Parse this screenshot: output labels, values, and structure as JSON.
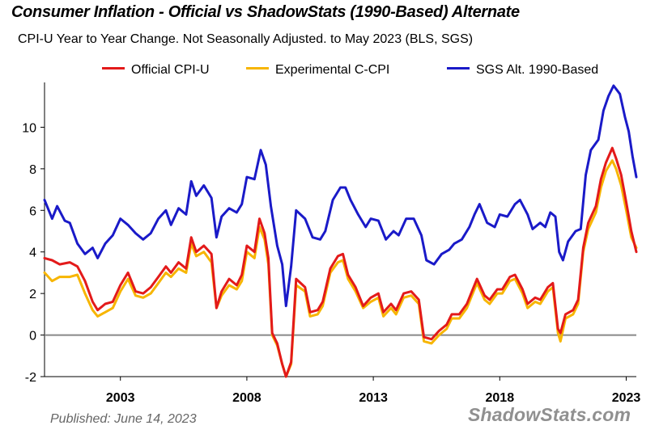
{
  "chart_data": {
    "type": "line",
    "title": "Consumer Inflation - Official vs ShadowStats (1990-Based) Alternate",
    "subtitle": "CPI-U Year to Year Change. Not Seasonally Adjusted. to May 2023  (BLS, SGS)",
    "xlabel": "",
    "ylabel": "",
    "xlim": [
      2000.0,
      2023.4
    ],
    "ylim": [
      -2,
      12
    ],
    "x_ticks": [
      "2003",
      "2008",
      "2013",
      "2018",
      "2023"
    ],
    "y_ticks": [
      "-2",
      "0",
      "2",
      "4",
      "6",
      "8",
      "10"
    ],
    "legend_position": "top",
    "grid": false,
    "published": "Published: June 14, 2023",
    "source": "ShadowStats.com",
    "series": [
      {
        "name": "Official CPI-U",
        "color": "#e31a1a",
        "points": [
          [
            2000.0,
            3.7
          ],
          [
            2000.3,
            3.6
          ],
          [
            2000.6,
            3.4
          ],
          [
            2001.0,
            3.5
          ],
          [
            2001.3,
            3.3
          ],
          [
            2001.6,
            2.6
          ],
          [
            2001.9,
            1.6
          ],
          [
            2002.1,
            1.2
          ],
          [
            2002.4,
            1.5
          ],
          [
            2002.7,
            1.6
          ],
          [
            2003.0,
            2.4
          ],
          [
            2003.3,
            3.0
          ],
          [
            2003.6,
            2.1
          ],
          [
            2003.9,
            2.0
          ],
          [
            2004.2,
            2.3
          ],
          [
            2004.5,
            2.8
          ],
          [
            2004.8,
            3.3
          ],
          [
            2005.0,
            3.0
          ],
          [
            2005.3,
            3.5
          ],
          [
            2005.6,
            3.2
          ],
          [
            2005.8,
            4.7
          ],
          [
            2006.0,
            4.0
          ],
          [
            2006.3,
            4.3
          ],
          [
            2006.6,
            3.9
          ],
          [
            2006.8,
            1.3
          ],
          [
            2007.0,
            2.1
          ],
          [
            2007.3,
            2.7
          ],
          [
            2007.6,
            2.4
          ],
          [
            2007.8,
            2.9
          ],
          [
            2008.0,
            4.3
          ],
          [
            2008.3,
            4.0
          ],
          [
            2008.5,
            5.6
          ],
          [
            2008.7,
            4.9
          ],
          [
            2008.85,
            3.7
          ],
          [
            2009.0,
            0.1
          ],
          [
            2009.2,
            -0.4
          ],
          [
            2009.4,
            -1.4
          ],
          [
            2009.55,
            -2.0
          ],
          [
            2009.75,
            -1.3
          ],
          [
            2009.95,
            2.7
          ],
          [
            2010.3,
            2.3
          ],
          [
            2010.5,
            1.1
          ],
          [
            2010.8,
            1.2
          ],
          [
            2011.0,
            1.6
          ],
          [
            2011.3,
            3.2
          ],
          [
            2011.6,
            3.8
          ],
          [
            2011.8,
            3.9
          ],
          [
            2012.0,
            2.9
          ],
          [
            2012.3,
            2.3
          ],
          [
            2012.6,
            1.4
          ],
          [
            2012.9,
            1.8
          ],
          [
            2013.2,
            2.0
          ],
          [
            2013.4,
            1.1
          ],
          [
            2013.7,
            1.5
          ],
          [
            2013.9,
            1.2
          ],
          [
            2014.2,
            2.0
          ],
          [
            2014.5,
            2.1
          ],
          [
            2014.8,
            1.7
          ],
          [
            2015.0,
            -0.1
          ],
          [
            2015.3,
            -0.2
          ],
          [
            2015.6,
            0.2
          ],
          [
            2015.9,
            0.5
          ],
          [
            2016.1,
            1.0
          ],
          [
            2016.4,
            1.0
          ],
          [
            2016.7,
            1.5
          ],
          [
            2016.9,
            2.1
          ],
          [
            2017.1,
            2.7
          ],
          [
            2017.4,
            1.9
          ],
          [
            2017.6,
            1.7
          ],
          [
            2017.9,
            2.2
          ],
          [
            2018.1,
            2.2
          ],
          [
            2018.4,
            2.8
          ],
          [
            2018.6,
            2.9
          ],
          [
            2018.9,
            2.2
          ],
          [
            2019.1,
            1.5
          ],
          [
            2019.4,
            1.8
          ],
          [
            2019.6,
            1.7
          ],
          [
            2019.9,
            2.3
          ],
          [
            2020.1,
            2.5
          ],
          [
            2020.3,
            0.3
          ],
          [
            2020.4,
            0.1
          ],
          [
            2020.6,
            1.0
          ],
          [
            2020.9,
            1.2
          ],
          [
            2021.1,
            1.7
          ],
          [
            2021.3,
            4.2
          ],
          [
            2021.5,
            5.4
          ],
          [
            2021.8,
            6.2
          ],
          [
            2022.0,
            7.5
          ],
          [
            2022.2,
            8.3
          ],
          [
            2022.45,
            9.0
          ],
          [
            2022.6,
            8.5
          ],
          [
            2022.8,
            7.7
          ],
          [
            2023.0,
            6.4
          ],
          [
            2023.2,
            5.0
          ],
          [
            2023.4,
            4.0
          ]
        ]
      },
      {
        "name": "Experimental C-CPI",
        "color": "#f7b500",
        "points": [
          [
            2000.0,
            3.0
          ],
          [
            2000.3,
            2.6
          ],
          [
            2000.6,
            2.8
          ],
          [
            2001.0,
            2.8
          ],
          [
            2001.3,
            2.9
          ],
          [
            2001.6,
            2.0
          ],
          [
            2001.9,
            1.2
          ],
          [
            2002.1,
            0.9
          ],
          [
            2002.4,
            1.1
          ],
          [
            2002.7,
            1.3
          ],
          [
            2003.0,
            2.1
          ],
          [
            2003.3,
            2.7
          ],
          [
            2003.6,
            1.9
          ],
          [
            2003.9,
            1.8
          ],
          [
            2004.2,
            2.0
          ],
          [
            2004.5,
            2.5
          ],
          [
            2004.8,
            3.0
          ],
          [
            2005.0,
            2.8
          ],
          [
            2005.3,
            3.2
          ],
          [
            2005.6,
            3.0
          ],
          [
            2005.8,
            4.4
          ],
          [
            2006.0,
            3.8
          ],
          [
            2006.3,
            4.0
          ],
          [
            2006.6,
            3.5
          ],
          [
            2006.8,
            1.3
          ],
          [
            2007.0,
            1.9
          ],
          [
            2007.3,
            2.4
          ],
          [
            2007.6,
            2.2
          ],
          [
            2007.8,
            2.6
          ],
          [
            2008.0,
            4.0
          ],
          [
            2008.3,
            3.7
          ],
          [
            2008.5,
            5.2
          ],
          [
            2008.7,
            4.6
          ],
          [
            2008.85,
            3.4
          ],
          [
            2009.0,
            0.0
          ],
          [
            2009.2,
            -0.5
          ],
          [
            2009.4,
            -1.4
          ],
          [
            2009.55,
            -2.0
          ],
          [
            2009.75,
            -1.4
          ],
          [
            2009.95,
            2.4
          ],
          [
            2010.3,
            2.1
          ],
          [
            2010.5,
            0.9
          ],
          [
            2010.8,
            1.0
          ],
          [
            2011.0,
            1.4
          ],
          [
            2011.3,
            3.0
          ],
          [
            2011.6,
            3.5
          ],
          [
            2011.8,
            3.6
          ],
          [
            2012.0,
            2.7
          ],
          [
            2012.3,
            2.1
          ],
          [
            2012.6,
            1.3
          ],
          [
            2012.9,
            1.6
          ],
          [
            2013.2,
            1.8
          ],
          [
            2013.4,
            0.9
          ],
          [
            2013.7,
            1.3
          ],
          [
            2013.9,
            1.0
          ],
          [
            2014.2,
            1.8
          ],
          [
            2014.5,
            1.9
          ],
          [
            2014.8,
            1.5
          ],
          [
            2015.0,
            -0.3
          ],
          [
            2015.3,
            -0.4
          ],
          [
            2015.6,
            0.0
          ],
          [
            2015.9,
            0.3
          ],
          [
            2016.1,
            0.8
          ],
          [
            2016.4,
            0.8
          ],
          [
            2016.7,
            1.3
          ],
          [
            2016.9,
            1.9
          ],
          [
            2017.1,
            2.5
          ],
          [
            2017.4,
            1.7
          ],
          [
            2017.6,
            1.5
          ],
          [
            2017.9,
            2.0
          ],
          [
            2018.1,
            2.0
          ],
          [
            2018.4,
            2.6
          ],
          [
            2018.6,
            2.7
          ],
          [
            2018.9,
            2.0
          ],
          [
            2019.1,
            1.3
          ],
          [
            2019.4,
            1.6
          ],
          [
            2019.6,
            1.5
          ],
          [
            2019.9,
            2.1
          ],
          [
            2020.1,
            2.3
          ],
          [
            2020.3,
            0.1
          ],
          [
            2020.4,
            -0.3
          ],
          [
            2020.6,
            0.8
          ],
          [
            2020.9,
            1.0
          ],
          [
            2021.1,
            1.5
          ],
          [
            2021.3,
            4.0
          ],
          [
            2021.5,
            5.1
          ],
          [
            2021.8,
            5.9
          ],
          [
            2022.0,
            7.1
          ],
          [
            2022.2,
            7.9
          ],
          [
            2022.45,
            8.4
          ],
          [
            2022.6,
            8.0
          ],
          [
            2022.8,
            7.2
          ],
          [
            2023.0,
            6.0
          ],
          [
            2023.2,
            4.7
          ],
          [
            2023.4,
            4.2
          ]
        ]
      },
      {
        "name": "SGS  Alt. 1990-Based",
        "color": "#1a1ac8",
        "points": [
          [
            2000.0,
            6.5
          ],
          [
            2000.3,
            5.6
          ],
          [
            2000.5,
            6.2
          ],
          [
            2000.8,
            5.5
          ],
          [
            2001.0,
            5.4
          ],
          [
            2001.3,
            4.4
          ],
          [
            2001.6,
            3.9
          ],
          [
            2001.9,
            4.2
          ],
          [
            2002.1,
            3.7
          ],
          [
            2002.4,
            4.4
          ],
          [
            2002.7,
            4.8
          ],
          [
            2003.0,
            5.6
          ],
          [
            2003.3,
            5.3
          ],
          [
            2003.6,
            4.9
          ],
          [
            2003.9,
            4.6
          ],
          [
            2004.2,
            4.9
          ],
          [
            2004.5,
            5.6
          ],
          [
            2004.8,
            6.0
          ],
          [
            2005.0,
            5.3
          ],
          [
            2005.3,
            6.1
          ],
          [
            2005.6,
            5.8
          ],
          [
            2005.8,
            7.4
          ],
          [
            2006.0,
            6.7
          ],
          [
            2006.3,
            7.2
          ],
          [
            2006.6,
            6.6
          ],
          [
            2006.8,
            4.7
          ],
          [
            2007.0,
            5.7
          ],
          [
            2007.3,
            6.1
          ],
          [
            2007.6,
            5.9
          ],
          [
            2007.8,
            6.3
          ],
          [
            2008.0,
            7.6
          ],
          [
            2008.3,
            7.5
          ],
          [
            2008.55,
            8.9
          ],
          [
            2008.75,
            8.2
          ],
          [
            2008.95,
            6.2
          ],
          [
            2009.2,
            4.3
          ],
          [
            2009.4,
            3.4
          ],
          [
            2009.55,
            1.4
          ],
          [
            2009.75,
            3.3
          ],
          [
            2009.95,
            6.0
          ],
          [
            2010.3,
            5.6
          ],
          [
            2010.6,
            4.7
          ],
          [
            2010.9,
            4.6
          ],
          [
            2011.1,
            5.0
          ],
          [
            2011.4,
            6.5
          ],
          [
            2011.7,
            7.1
          ],
          [
            2011.9,
            7.1
          ],
          [
            2012.1,
            6.5
          ],
          [
            2012.4,
            5.8
          ],
          [
            2012.7,
            5.2
          ],
          [
            2012.9,
            5.6
          ],
          [
            2013.2,
            5.5
          ],
          [
            2013.5,
            4.6
          ],
          [
            2013.8,
            5.0
          ],
          [
            2014.0,
            4.8
          ],
          [
            2014.3,
            5.6
          ],
          [
            2014.6,
            5.6
          ],
          [
            2014.9,
            4.8
          ],
          [
            2015.1,
            3.6
          ],
          [
            2015.4,
            3.4
          ],
          [
            2015.7,
            3.9
          ],
          [
            2016.0,
            4.1
          ],
          [
            2016.2,
            4.4
          ],
          [
            2016.5,
            4.6
          ],
          [
            2016.8,
            5.2
          ],
          [
            2017.0,
            5.8
          ],
          [
            2017.2,
            6.3
          ],
          [
            2017.5,
            5.4
          ],
          [
            2017.8,
            5.2
          ],
          [
            2018.0,
            5.8
          ],
          [
            2018.3,
            5.7
          ],
          [
            2018.6,
            6.3
          ],
          [
            2018.8,
            6.5
          ],
          [
            2019.1,
            5.8
          ],
          [
            2019.3,
            5.1
          ],
          [
            2019.6,
            5.4
          ],
          [
            2019.8,
            5.2
          ],
          [
            2020.0,
            5.9
          ],
          [
            2020.2,
            5.7
          ],
          [
            2020.35,
            4.0
          ],
          [
            2020.5,
            3.6
          ],
          [
            2020.7,
            4.5
          ],
          [
            2021.0,
            5.0
          ],
          [
            2021.2,
            5.1
          ],
          [
            2021.4,
            7.7
          ],
          [
            2021.6,
            8.9
          ],
          [
            2021.9,
            9.4
          ],
          [
            2022.1,
            10.8
          ],
          [
            2022.3,
            11.5
          ],
          [
            2022.5,
            12.0
          ],
          [
            2022.75,
            11.6
          ],
          [
            2022.95,
            10.5
          ],
          [
            2023.1,
            9.8
          ],
          [
            2023.25,
            8.6
          ],
          [
            2023.4,
            7.6
          ]
        ]
      }
    ]
  }
}
